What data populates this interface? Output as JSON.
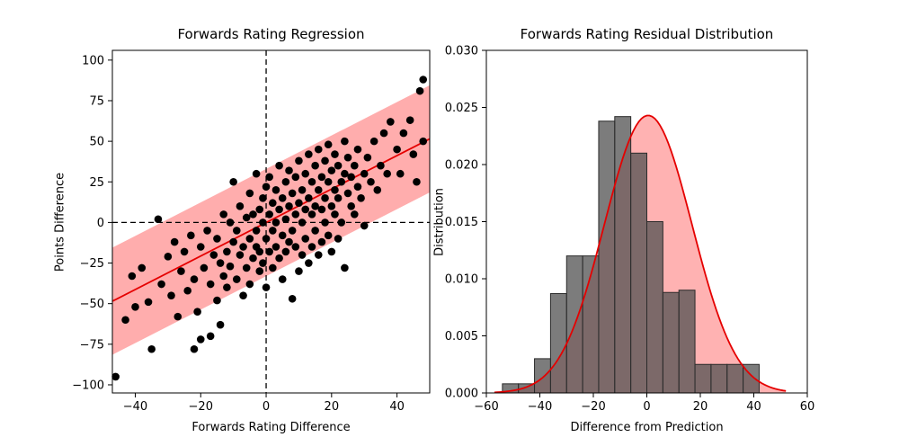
{
  "figure": {
    "background": "#ffffff"
  },
  "colors": {
    "scatter_point": "#000000",
    "regression_line": "#e50000",
    "confidence_band": "rgba(255,0,0,0.32)",
    "hist_bar": "rgba(80,80,80,0.75)",
    "hist_bar_edge": "#2b2b2b",
    "curve": "#e50000",
    "curve_fill": "rgba(255,0,0,0.30)",
    "axis": "#000000",
    "zero_line": "#000000"
  },
  "chart_data": [
    {
      "type": "scatter",
      "title": "Forwards Rating Regression",
      "xlabel": "Forwards Rating Difference",
      "ylabel": "Points Difference",
      "xlim": [
        -47,
        50
      ],
      "ylim": [
        -105,
        106
      ],
      "xticks": [
        -40,
        -20,
        0,
        20,
        40
      ],
      "xtick_labels": [
        "−40",
        "−20",
        "0",
        "20",
        "40"
      ],
      "yticks": [
        -100,
        -75,
        -50,
        -25,
        0,
        25,
        50,
        75,
        100
      ],
      "ytick_labels": [
        "−100",
        "−75",
        "−50",
        "−25",
        "0",
        "25",
        "50",
        "75",
        "100"
      ],
      "grid": false,
      "zero_lines": true,
      "regression_line": {
        "x": [
          -47,
          50
        ],
        "y": [
          -48.5,
          51.5
        ]
      },
      "confidence_band_halfwidth": 33,
      "points": [
        [
          -46,
          -95
        ],
        [
          -43,
          -60
        ],
        [
          -41,
          -33
        ],
        [
          -40,
          -52
        ],
        [
          -38,
          -28
        ],
        [
          -36,
          -49
        ],
        [
          -35,
          -78
        ],
        [
          -33,
          2
        ],
        [
          -32,
          -38
        ],
        [
          -30,
          -21
        ],
        [
          -29,
          -45
        ],
        [
          -28,
          -12
        ],
        [
          -27,
          -58
        ],
        [
          -26,
          -30
        ],
        [
          -25,
          -18
        ],
        [
          -24,
          -42
        ],
        [
          -23,
          -8
        ],
        [
          -22,
          -35
        ],
        [
          -22,
          -78
        ],
        [
          -21,
          -55
        ],
        [
          -20,
          -72
        ],
        [
          -20,
          -15
        ],
        [
          -19,
          -28
        ],
        [
          -18,
          -5
        ],
        [
          -17,
          -70
        ],
        [
          -17,
          -38
        ],
        [
          -16,
          -20
        ],
        [
          -15,
          -48
        ],
        [
          -15,
          -10
        ],
        [
          -14,
          -63
        ],
        [
          -14,
          -25
        ],
        [
          -13,
          5
        ],
        [
          -13,
          -33
        ],
        [
          -12,
          -18
        ],
        [
          -12,
          -40
        ],
        [
          -11,
          0
        ],
        [
          -11,
          -27
        ],
        [
          -10,
          -12
        ],
        [
          -10,
          25
        ],
        [
          -9,
          -35
        ],
        [
          -9,
          -5
        ],
        [
          -8,
          -20
        ],
        [
          -8,
          10
        ],
        [
          -7,
          -45
        ],
        [
          -7,
          -15
        ],
        [
          -6,
          3
        ],
        [
          -6,
          -28
        ],
        [
          -5,
          -10
        ],
        [
          -5,
          18
        ],
        [
          -5,
          -38
        ],
        [
          -4,
          -22
        ],
        [
          -4,
          5
        ],
        [
          -3,
          -15
        ],
        [
          -3,
          30
        ],
        [
          -3,
          -5
        ],
        [
          -2,
          -30
        ],
        [
          -2,
          8
        ],
        [
          -2,
          -18
        ],
        [
          -1,
          0
        ],
        [
          -1,
          -25
        ],
        [
          -1,
          15
        ],
        [
          0,
          -10
        ],
        [
          0,
          22
        ],
        [
          0,
          -40
        ],
        [
          1,
          5
        ],
        [
          1,
          -18
        ],
        [
          1,
          28
        ],
        [
          2,
          -5
        ],
        [
          2,
          12
        ],
        [
          2,
          -28
        ],
        [
          3,
          0
        ],
        [
          3,
          20
        ],
        [
          3,
          -15
        ],
        [
          4,
          8
        ],
        [
          4,
          -22
        ],
        [
          4,
          35
        ],
        [
          5,
          -8
        ],
        [
          5,
          15
        ],
        [
          5,
          -35
        ],
        [
          6,
          2
        ],
        [
          6,
          25
        ],
        [
          6,
          -18
        ],
        [
          7,
          10
        ],
        [
          7,
          -12
        ],
        [
          7,
          32
        ],
        [
          8,
          -5
        ],
        [
          8,
          18
        ],
        [
          8,
          -47
        ],
        [
          9,
          5
        ],
        [
          9,
          28
        ],
        [
          9,
          -15
        ],
        [
          10,
          12
        ],
        [
          10,
          -30
        ],
        [
          10,
          38
        ],
        [
          11,
          0
        ],
        [
          11,
          20
        ],
        [
          11,
          -20
        ],
        [
          12,
          8
        ],
        [
          12,
          30
        ],
        [
          12,
          -10
        ],
        [
          13,
          15
        ],
        [
          13,
          -25
        ],
        [
          13,
          42
        ],
        [
          14,
          5
        ],
        [
          14,
          25
        ],
        [
          14,
          -15
        ],
        [
          15,
          10
        ],
        [
          15,
          35
        ],
        [
          15,
          -5
        ],
        [
          16,
          20
        ],
        [
          16,
          -20
        ],
        [
          16,
          45
        ],
        [
          17,
          8
        ],
        [
          17,
          28
        ],
        [
          17,
          -12
        ],
        [
          18,
          15
        ],
        [
          18,
          38
        ],
        [
          18,
          0
        ],
        [
          19,
          25
        ],
        [
          19,
          -8
        ],
        [
          19,
          48
        ],
        [
          20,
          10
        ],
        [
          20,
          32
        ],
        [
          20,
          -18
        ],
        [
          21,
          20
        ],
        [
          21,
          42
        ],
        [
          21,
          5
        ],
        [
          22,
          15
        ],
        [
          22,
          -10
        ],
        [
          22,
          35
        ],
        [
          23,
          25
        ],
        [
          23,
          0
        ],
        [
          24,
          30
        ],
        [
          24,
          -28
        ],
        [
          24,
          50
        ],
        [
          25,
          18
        ],
        [
          25,
          40
        ],
        [
          26,
          10
        ],
        [
          26,
          28
        ],
        [
          27,
          35
        ],
        [
          27,
          5
        ],
        [
          28,
          22
        ],
        [
          28,
          45
        ],
        [
          29,
          15
        ],
        [
          30,
          30
        ],
        [
          30,
          -2
        ],
        [
          31,
          40
        ],
        [
          32,
          25
        ],
        [
          33,
          50
        ],
        [
          34,
          20
        ],
        [
          35,
          35
        ],
        [
          36,
          55
        ],
        [
          37,
          30
        ],
        [
          38,
          62
        ],
        [
          40,
          45
        ],
        [
          41,
          30
        ],
        [
          42,
          55
        ],
        [
          44,
          63
        ],
        [
          45,
          42
        ],
        [
          46,
          25
        ],
        [
          47,
          81
        ],
        [
          48,
          88
        ],
        [
          48,
          50
        ]
      ]
    },
    {
      "type": "bar",
      "title": "Forwards Rating Residual Distribution",
      "xlabel": "Difference from Prediction",
      "ylabel": "Distribution",
      "xlim": [
        -60,
        60
      ],
      "ylim": [
        0,
        0.03
      ],
      "xticks": [
        -60,
        -40,
        -20,
        0,
        20,
        40,
        60
      ],
      "xtick_labels": [
        "−60",
        "−40",
        "−20",
        "0",
        "20",
        "40",
        "60"
      ],
      "yticks": [
        0,
        0.005,
        0.01,
        0.015,
        0.02,
        0.025,
        0.03
      ],
      "ytick_labels": [
        "0.000",
        "0.005",
        "0.010",
        "0.015",
        "0.020",
        "0.025",
        "0.030"
      ],
      "grid": false,
      "bin_edges": [
        -54,
        -48,
        -42,
        -36,
        -30,
        -24,
        -18,
        -12,
        -6,
        0,
        6,
        12,
        18,
        24,
        30,
        36,
        42
      ],
      "bin_heights": [
        0.0008,
        0.0008,
        0.003,
        0.0087,
        0.012,
        0.012,
        0.0238,
        0.0242,
        0.021,
        0.015,
        0.0088,
        0.009,
        0.0025,
        0.0025,
        0.0025,
        0.0025
      ],
      "normal_curve": {
        "mean": 0.5,
        "sigma": 16.4,
        "peak": 0.0243
      }
    }
  ]
}
